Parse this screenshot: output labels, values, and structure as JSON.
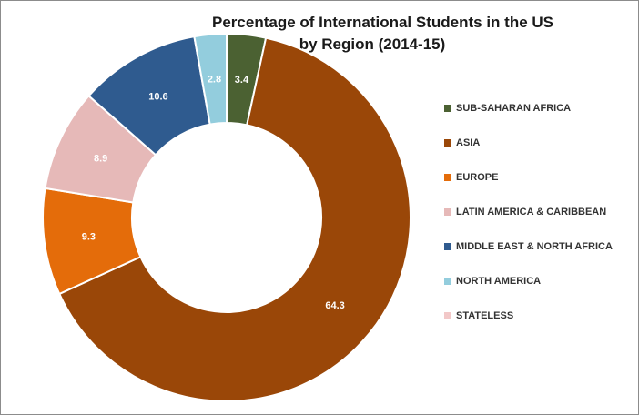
{
  "chart_data": {
    "type": "donut",
    "title_lines": [
      "Percentage of International Students in the US",
      "by Region (2014-15)"
    ],
    "categories": [
      "SUB-SAHARAN AFRICA",
      "ASIA",
      "EUROPE",
      "LATIN AMERICA & CARIBBEAN",
      "MIDDLE EAST & NORTH AFRICA",
      "NORTH AMERICA",
      "STATELESS"
    ],
    "values": [
      3.4,
      64.3,
      9.3,
      8.9,
      10.6,
      2.8,
      0.0
    ],
    "value_labels": [
      "3.4",
      "64.3",
      "9.3",
      "8.9",
      "10.6",
      "2.8",
      ""
    ],
    "colors": [
      "#4b6132",
      "#9a4708",
      "#e46c0a",
      "#e6b9b8",
      "#2f5b8f",
      "#93cddd",
      "#f2c8c8"
    ],
    "legend_position": "right",
    "start_angle_deg": 0,
    "direction": "clockwise"
  }
}
